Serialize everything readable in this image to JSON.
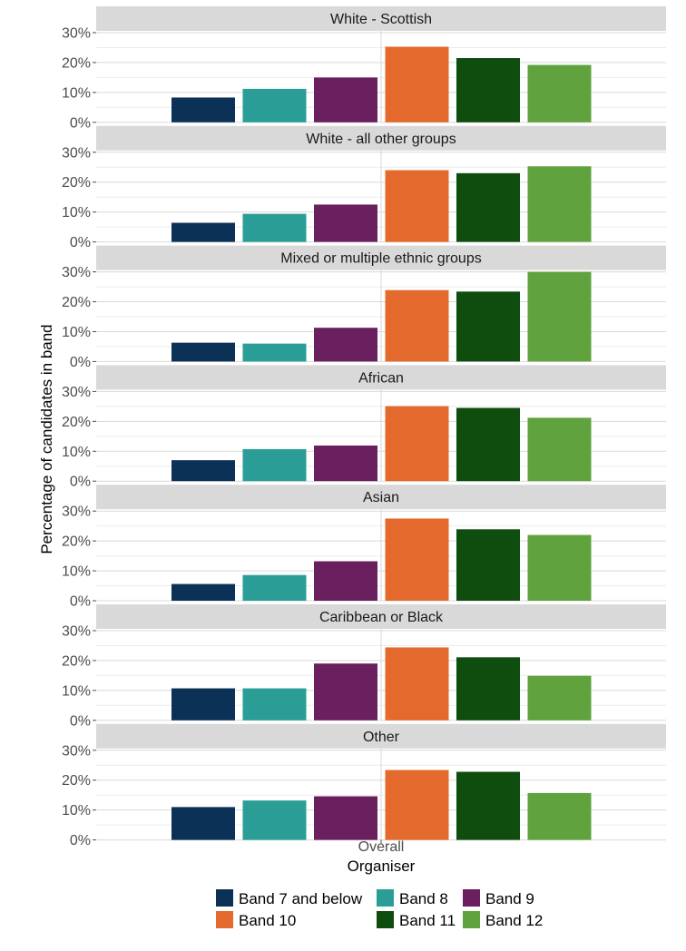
{
  "chart_data": {
    "type": "bar",
    "xlabel": "Organiser",
    "ylabel": "Percentage of candidates in band",
    "ylim": [
      0,
      30
    ],
    "yticks": [
      "0%",
      "10%",
      "20%",
      "30%"
    ],
    "x_tick": "Overall",
    "grid": true,
    "legend_position": "bottom",
    "series": [
      {
        "name": "Band 7 and below",
        "color": "#0b3157"
      },
      {
        "name": "Band 8",
        "color": "#2a9e96"
      },
      {
        "name": "Band 9",
        "color": "#6a1f5e"
      },
      {
        "name": "Band 10",
        "color": "#e36a2c"
      },
      {
        "name": "Band 11",
        "color": "#0e4d0e"
      },
      {
        "name": "Band 12",
        "color": "#5fa23e"
      }
    ],
    "panels": [
      {
        "title": "White - Scottish",
        "values": [
          8.3,
          11.2,
          15.0,
          25.3,
          21.5,
          19.2
        ]
      },
      {
        "title": "White - all other groups",
        "values": [
          6.4,
          9.4,
          12.5,
          24.0,
          23.0,
          25.3
        ]
      },
      {
        "title": "Mixed or multiple ethnic groups",
        "values": [
          6.3,
          6.0,
          11.3,
          23.9,
          23.4,
          30.0
        ]
      },
      {
        "title": "African",
        "values": [
          7.0,
          10.7,
          11.9,
          25.1,
          24.5,
          21.2
        ]
      },
      {
        "title": "Asian",
        "values": [
          5.6,
          8.6,
          13.2,
          27.5,
          23.9,
          22.0
        ]
      },
      {
        "title": "Caribbean or Black",
        "values": [
          10.7,
          10.7,
          19.0,
          24.4,
          21.1,
          14.9
        ]
      },
      {
        "title": "Other",
        "values": [
          11.0,
          13.2,
          14.6,
          23.4,
          22.8,
          15.7
        ]
      }
    ]
  }
}
